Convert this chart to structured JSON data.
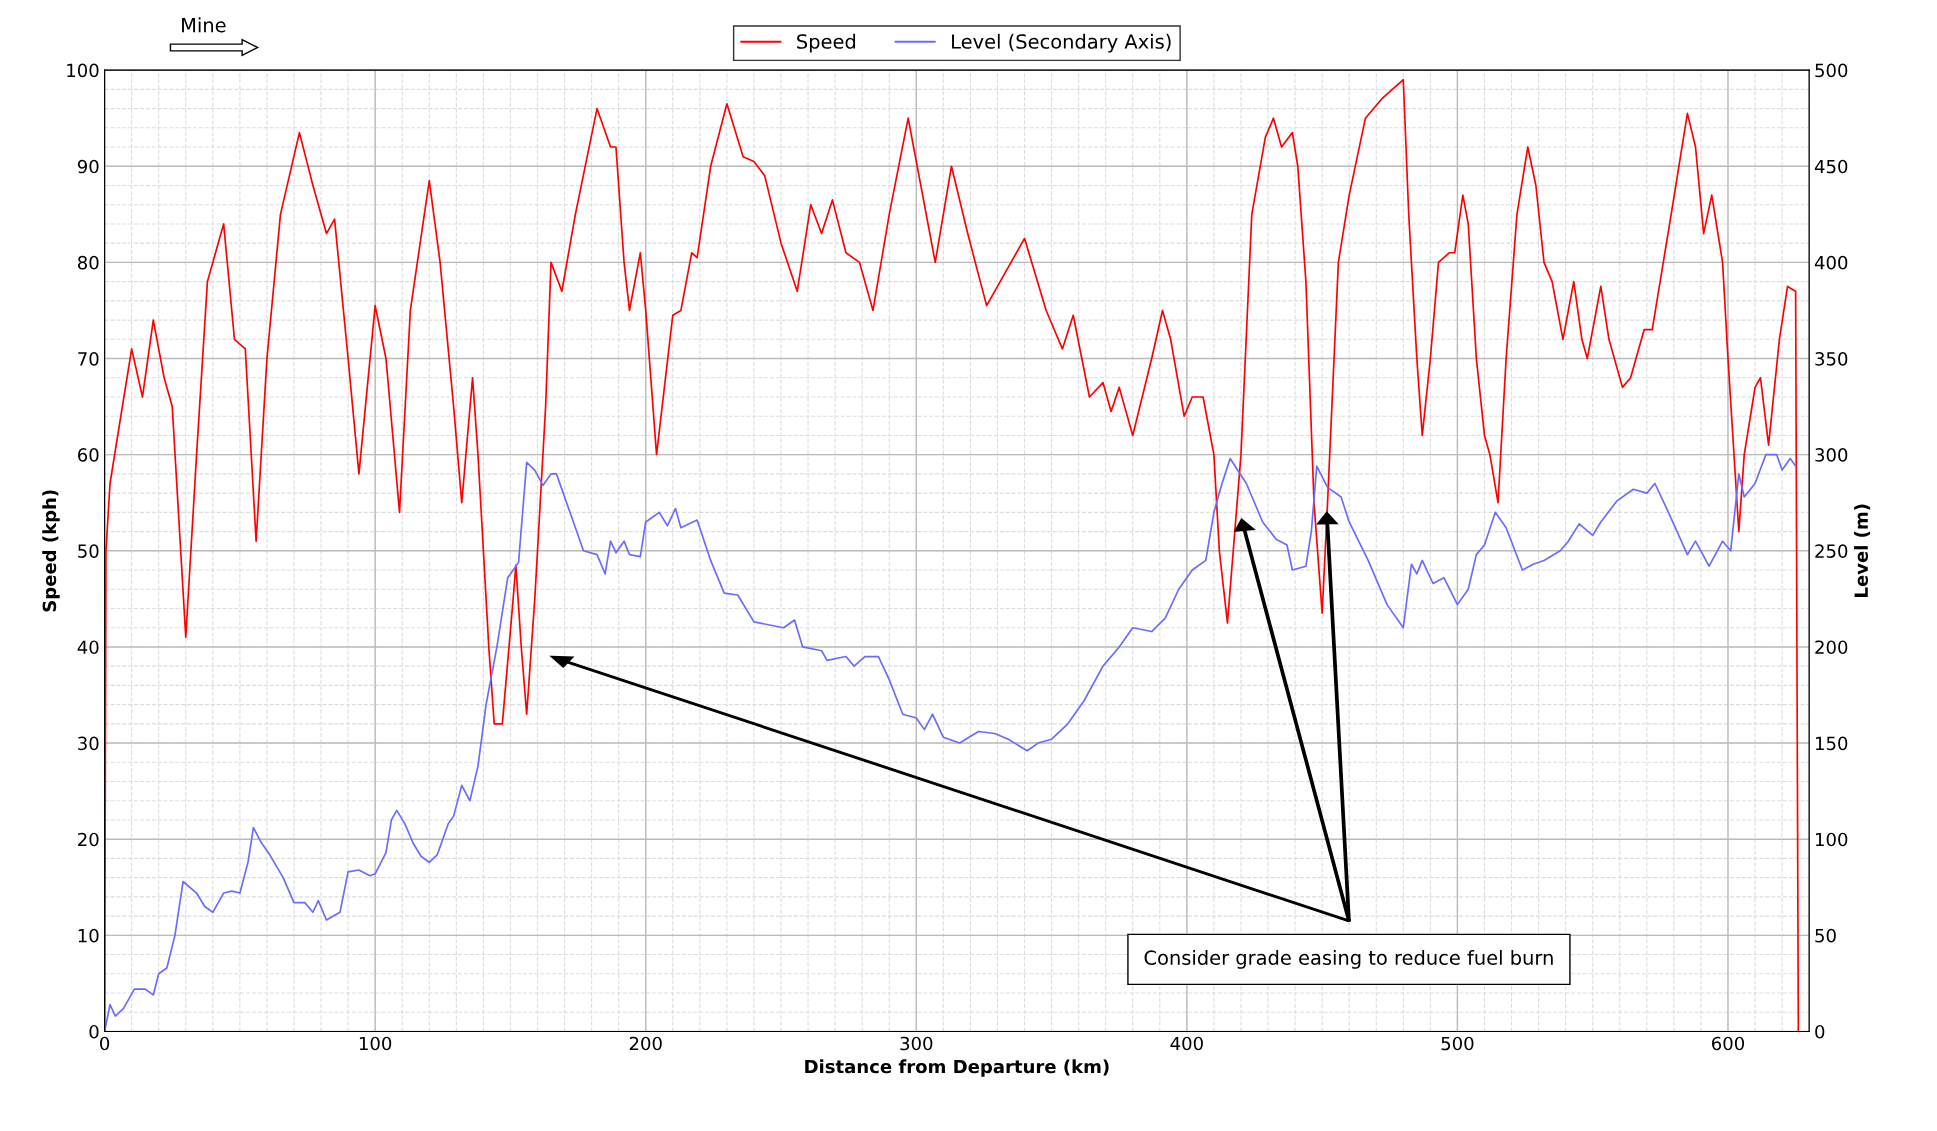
{
  "chart_data": {
    "type": "line",
    "xlabel": "Distance from Departure (km)",
    "ylabel": "Speed (kph)",
    "y2label": "Level (m)",
    "xlim": [
      0,
      630
    ],
    "xticks": [
      0,
      100,
      200,
      300,
      400,
      500,
      600
    ],
    "ylim": [
      0,
      100
    ],
    "yticks": [
      0,
      10,
      20,
      30,
      40,
      50,
      60,
      70,
      80,
      90,
      100
    ],
    "y2lim": [
      0,
      500
    ],
    "y2ticks": [
      0,
      50,
      100,
      150,
      200,
      250,
      300,
      350,
      400,
      450,
      500
    ],
    "grid": true,
    "legend": "top",
    "marker": "none",
    "line_style": "solid",
    "series": [
      {
        "name": "Speed",
        "color": "#ff0000",
        "x": [
          0,
          0.5,
          2,
          10,
          14,
          18,
          22,
          25,
          30,
          34,
          38,
          44,
          48,
          52,
          56,
          60,
          65,
          72,
          77,
          82,
          85,
          90,
          94,
          100,
          104,
          109,
          113,
          120,
          124,
          129,
          132,
          136,
          138,
          142,
          144,
          147,
          151,
          152,
          154,
          156,
          159,
          163,
          165,
          169,
          174,
          182,
          187,
          189,
          192,
          194,
          198,
          200,
          204,
          210,
          213,
          217,
          219,
          224,
          230,
          236,
          240,
          244,
          250,
          256,
          261,
          265,
          269,
          274,
          279,
          284,
          290,
          297,
          307,
          313,
          319,
          326,
          340,
          348,
          354,
          358,
          364,
          369,
          372,
          375,
          380,
          387,
          391,
          394,
          399,
          402,
          406,
          410,
          412,
          415,
          420,
          424,
          429,
          432,
          435,
          439,
          441,
          444,
          447,
          450,
          452,
          456,
          460,
          466,
          472,
          480,
          482,
          485,
          487,
          490,
          493,
          497,
          499,
          502,
          504,
          507,
          510,
          512,
          515,
          518,
          522,
          526,
          529,
          532,
          535,
          539,
          543,
          546,
          548,
          553,
          556,
          561,
          564,
          569,
          572,
          579,
          585,
          588,
          591,
          594,
          598,
          600,
          604,
          606,
          610,
          612,
          615,
          619,
          622,
          625,
          626
        ],
        "values": [
          0,
          50,
          57,
          71,
          66,
          74,
          68,
          65,
          41,
          60,
          78,
          84,
          72,
          71,
          51,
          70,
          85,
          93.5,
          88,
          83,
          84.5,
          70,
          58,
          75.5,
          70,
          54,
          75,
          88.5,
          80,
          65,
          55,
          68,
          60,
          40,
          32,
          32,
          45,
          48.5,
          40,
          33,
          45,
          65,
          80,
          77,
          85,
          96,
          92,
          92,
          80,
          75,
          81,
          75,
          60,
          74.5,
          75,
          81,
          80.5,
          90,
          96.5,
          91,
          90.5,
          89,
          82,
          77,
          86,
          83,
          86.5,
          81,
          80,
          75,
          85,
          95,
          80,
          90,
          83,
          75.5,
          82.5,
          75,
          71,
          74.5,
          66,
          67.5,
          64.5,
          67,
          62,
          70,
          75,
          72,
          64,
          66,
          66,
          60,
          50,
          42.5,
          60,
          85,
          93,
          95,
          92,
          93.5,
          90,
          78,
          55,
          43.5,
          55,
          80,
          87,
          95,
          97,
          99,
          85,
          70,
          62,
          70,
          80,
          81,
          81,
          87,
          84,
          70,
          62,
          60,
          55,
          70,
          85,
          92,
          88,
          80,
          78,
          72,
          78,
          72,
          70,
          77.5,
          72,
          67,
          68,
          73,
          73,
          85,
          95.5,
          92,
          83,
          87,
          80,
          70,
          52,
          60,
          67,
          68,
          61,
          72,
          77.5,
          77,
          0
        ]
      },
      {
        "name": "Level (Secondary Axis)",
        "color": "#6b6bff",
        "axis": "y2",
        "x": [
          0,
          2,
          4,
          7,
          11,
          15,
          18,
          20,
          23,
          26,
          29,
          34,
          37,
          40,
          44,
          47,
          50,
          53,
          55,
          58,
          61,
          66,
          70,
          74,
          77,
          79,
          82,
          87,
          90,
          94,
          98,
          100,
          104,
          106,
          108,
          111,
          114,
          117,
          120,
          123,
          127,
          129,
          132,
          135,
          138,
          141,
          145,
          149,
          152,
          153,
          156,
          159,
          162,
          165,
          167,
          172,
          177,
          182,
          185,
          187,
          189,
          192,
          194,
          198,
          200,
          205,
          208,
          211,
          213,
          219,
          224,
          229,
          234,
          240,
          251,
          255,
          258,
          265,
          267,
          274,
          277,
          281,
          286,
          290,
          295,
          300,
          303,
          306,
          310,
          316,
          323,
          329,
          334,
          341,
          345,
          350,
          356,
          362,
          369,
          375,
          380,
          387,
          392,
          397,
          402,
          407,
          410,
          413,
          416,
          422,
          428,
          433,
          437,
          439,
          444,
          446,
          448,
          452,
          457,
          460,
          467,
          474,
          480,
          483,
          485,
          487,
          491,
          495,
          500,
          504,
          507,
          510,
          514,
          518,
          524,
          528,
          532,
          538,
          541,
          545,
          550,
          553,
          559,
          565,
          570,
          573,
          578,
          585,
          588,
          593,
          598,
          601,
          604,
          606,
          610,
          614,
          618,
          620,
          623,
          625
        ],
        "values": [
          0,
          14,
          8,
          12,
          22,
          22,
          19,
          30,
          33,
          50,
          78,
          72,
          65,
          62,
          72,
          73,
          72,
          88,
          106,
          98,
          92,
          80,
          67,
          67,
          62,
          68,
          58,
          62,
          83,
          84,
          81,
          82,
          93,
          110,
          115,
          108,
          98,
          91,
          88,
          92,
          108,
          112,
          128,
          120,
          138,
          170,
          200,
          236,
          242,
          244,
          296,
          292,
          284,
          290,
          290,
          270,
          250,
          248,
          238,
          255,
          249,
          255,
          248,
          247,
          265,
          270,
          263,
          272,
          262,
          266,
          245,
          228,
          227,
          213,
          210,
          214,
          200,
          198,
          193,
          195,
          190,
          195,
          195,
          183,
          165,
          163,
          157,
          165,
          153,
          150,
          156,
          155,
          152,
          146,
          150,
          152,
          160,
          172,
          190,
          200,
          210,
          208,
          215,
          230,
          240,
          245,
          270,
          285,
          298,
          285,
          265,
          256,
          253,
          240,
          242,
          260,
          294,
          283,
          278,
          265,
          245,
          222,
          210,
          243,
          238,
          245,
          233,
          236,
          222,
          230,
          248,
          253,
          270,
          262,
          240,
          243,
          245,
          250,
          255,
          264,
          258,
          265,
          276,
          282,
          280,
          285,
          270,
          248,
          255,
          242,
          255,
          250,
          290,
          278,
          285,
          300,
          300,
          292,
          298,
          294
        ]
      }
    ],
    "annotations": [
      "Mine",
      "Consider grade easing to reduce fuel burn"
    ]
  }
}
